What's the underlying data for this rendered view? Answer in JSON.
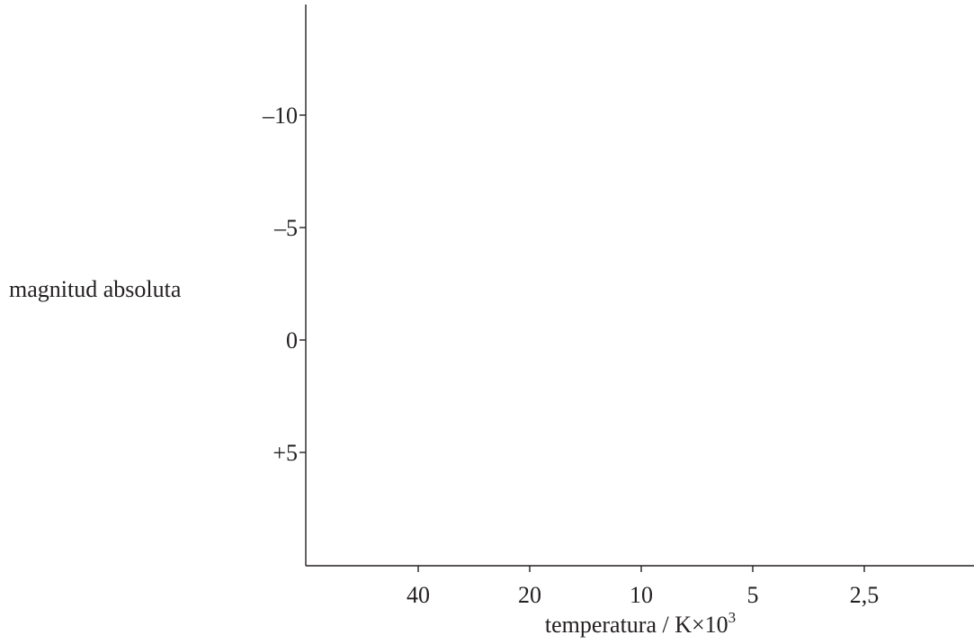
{
  "chart_data": {
    "type": "scatter",
    "title": "",
    "xlabel": "temperatura / K×10",
    "xlabel_superscript": "3",
    "ylabel": "magnitud absoluta",
    "x_ticks": [
      {
        "value": 40,
        "label": "40"
      },
      {
        "value": 20,
        "label": "20"
      },
      {
        "value": 10,
        "label": "10"
      },
      {
        "value": 5,
        "label": "5"
      },
      {
        "value": 2.5,
        "label": "2,5"
      }
    ],
    "y_ticks": [
      {
        "value": -10,
        "label": "–10"
      },
      {
        "value": -5,
        "label": "–5"
      },
      {
        "value": 0,
        "label": "0"
      },
      {
        "value": 5,
        "label": "+5"
      }
    ],
    "x_scale": "log",
    "x_reversed": true,
    "y_reversed": true,
    "ylim": [
      -15,
      10
    ],
    "grid": false,
    "series": []
  }
}
